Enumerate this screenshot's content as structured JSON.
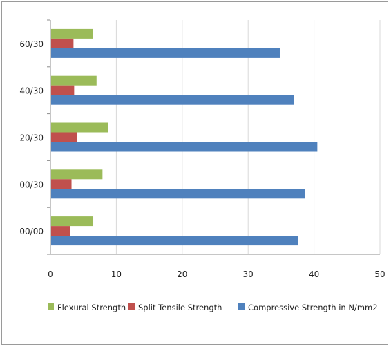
{
  "chart_data": {
    "type": "bar",
    "orientation": "horizontal",
    "title": "",
    "xlabel": "",
    "ylabel": "",
    "categories": [
      "00/00",
      "00/30",
      "20/30",
      "40/30",
      "60/30"
    ],
    "xlim": [
      0,
      50
    ],
    "xticks": [
      0,
      10,
      20,
      30,
      40,
      50
    ],
    "grid": "vertical",
    "legend": "bottom",
    "series": [
      {
        "name": "Flexural Strength",
        "color": "#9bbb59",
        "values": [
          6.5,
          7.9,
          8.8,
          7.0,
          6.4
        ]
      },
      {
        "name": "Split Tensile Strength",
        "color": "#c0504d",
        "values": [
          3.0,
          3.2,
          4.0,
          3.6,
          3.5
        ]
      },
      {
        "name": "Compressive Strength in N/mm2",
        "color": "#4f81bd",
        "values": [
          37.6,
          38.6,
          40.5,
          37.0,
          34.8
        ]
      }
    ]
  }
}
